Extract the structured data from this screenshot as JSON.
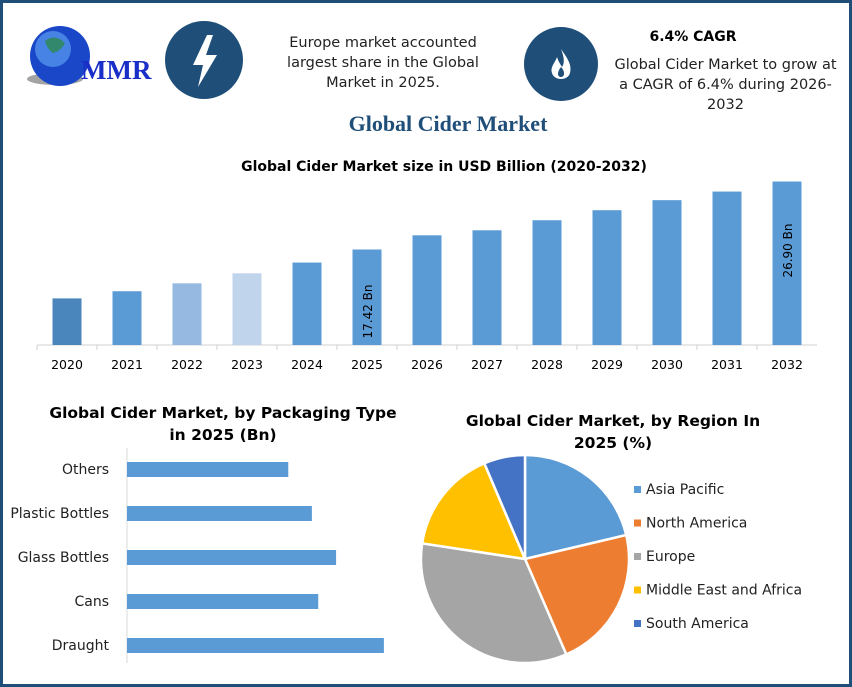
{
  "header": {
    "logo_text": "MMR",
    "left_icon": "lightning-bolt-icon",
    "left_text": "Europe market accounted largest share in the Global Market in 2025.",
    "right_icon": "flame-icon",
    "cagr_title": "6.4% CAGR",
    "right_text": "Global Cider Market to grow at a CAGR of 6.4% during 2026-2032"
  },
  "main_title": "Global Cider Market",
  "colors": {
    "accent": "#1f4e79",
    "bar": "#5b9bd5",
    "title": "#1f4e79"
  },
  "chart_data": [
    {
      "type": "bar",
      "title": "Global Cider Market size in USD Billion (2020-2032)",
      "categories": [
        "2020",
        "2021",
        "2022",
        "2023",
        "2024",
        "2025",
        "2026",
        "2027",
        "2028",
        "2029",
        "2030",
        "2031",
        "2032"
      ],
      "values": [
        10.6,
        11.6,
        12.7,
        14.1,
        15.6,
        17.42,
        19.4,
        20.1,
        21.5,
        22.9,
        24.3,
        25.5,
        26.9
      ],
      "colors": [
        "#4a86bb",
        "#5b9bd5",
        "#95b9e0",
        "#c0d4ec",
        "#5b9bd5",
        "#5b9bd5",
        "#5b9bd5",
        "#5b9bd5",
        "#5b9bd5",
        "#5b9bd5",
        "#5b9bd5",
        "#5b9bd5",
        "#5b9bd5"
      ],
      "data_labels": {
        "2025": "17.42 Bn",
        "2032": "26.90 Bn"
      },
      "ylim": [
        4.1,
        28
      ],
      "grid": false
    },
    {
      "type": "bar",
      "orientation": "horizontal",
      "title": "Global Cider Market, by Packaging Type in 2025 (Bn)",
      "categories": [
        "Others",
        "Plastic Bottles",
        "Glass Bottles",
        "Cans",
        "Draught"
      ],
      "values": [
        2.8,
        3.21,
        3.63,
        3.32,
        4.46
      ],
      "color": "#5b9bd5",
      "xlim": [
        0,
        5.5
      ]
    },
    {
      "type": "pie",
      "title": "Global Cider Market, by Region In 2025 (%)",
      "legend_position": "right",
      "slices": [
        {
          "name": "Asia Pacific",
          "value": 21.3,
          "color": "#5b9bd5"
        },
        {
          "name": "North America",
          "value": 22.2,
          "color": "#ed7d31"
        },
        {
          "name": "Europe",
          "value": 33.9,
          "color": "#a5a5a5"
        },
        {
          "name": "Middle East and Africa",
          "value": 16.2,
          "color": "#ffc000"
        },
        {
          "name": "South America",
          "value": 6.4,
          "color": "#4472c4"
        }
      ]
    }
  ]
}
